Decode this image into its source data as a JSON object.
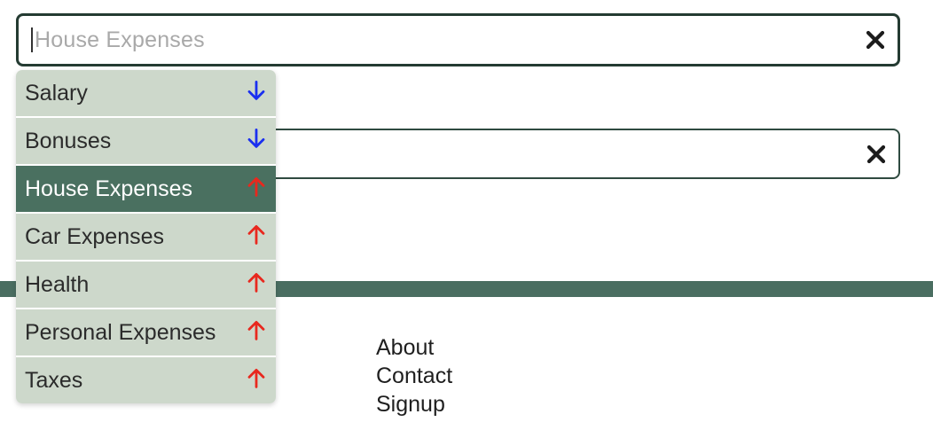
{
  "category_field": {
    "value": "House Expenses",
    "clear_icon": "close-icon"
  },
  "second_field": {
    "value": "",
    "clear_icon": "close-icon"
  },
  "dropdown": {
    "items": [
      {
        "label": "Salary",
        "direction": "down",
        "icon": "arrow-down-icon",
        "color": "#1a2ff0"
      },
      {
        "label": "Bonuses",
        "direction": "down",
        "icon": "arrow-down-icon",
        "color": "#1a2ff0"
      },
      {
        "label": "House Expenses",
        "direction": "up",
        "icon": "arrow-up-icon",
        "color": "#e8281e",
        "selected": true
      },
      {
        "label": "Car Expenses",
        "direction": "up",
        "icon": "arrow-up-icon",
        "color": "#e8281e"
      },
      {
        "label": "Health",
        "direction": "up",
        "icon": "arrow-up-icon",
        "color": "#e8281e"
      },
      {
        "label": "Personal Expenses",
        "direction": "up",
        "icon": "arrow-up-icon",
        "color": "#e8281e"
      },
      {
        "label": "Taxes",
        "direction": "up",
        "icon": "arrow-up-icon",
        "color": "#e8281e"
      }
    ]
  },
  "footer": {
    "links": [
      "About",
      "Contact",
      "Signup"
    ]
  },
  "colors": {
    "accent_bar": "#4a6e61",
    "selected_item": "#4a7060",
    "item_bg": "#cdd8cb",
    "income_arrow": "#1a2ff0",
    "expense_arrow": "#e8281e"
  }
}
